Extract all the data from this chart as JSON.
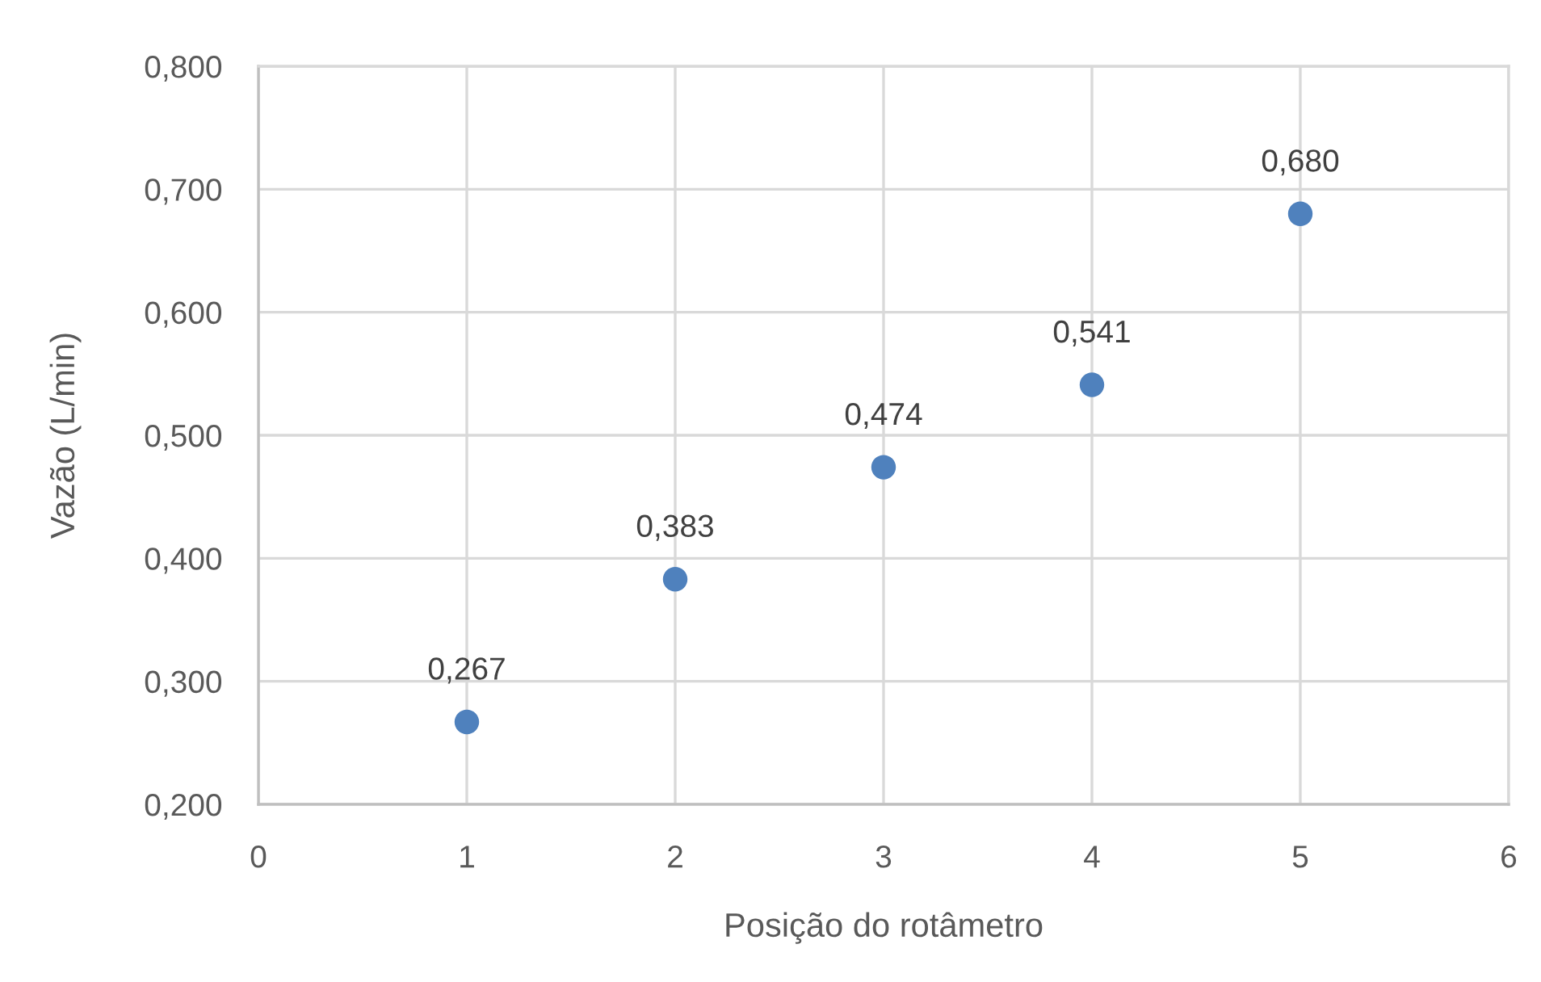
{
  "chart_data": {
    "type": "scatter",
    "xlabel": "Posição do rotâmetro",
    "ylabel": "Vazão (L/min)",
    "x": [
      1,
      2,
      3,
      4,
      5
    ],
    "series": [
      {
        "color": "#4f81bd",
        "values": [
          0.267,
          0.383,
          0.474,
          0.541,
          0.68
        ],
        "value_labels": [
          "0,267",
          "0,383",
          "0,474",
          "0,541",
          "0,680"
        ]
      }
    ],
    "xlim": [
      0,
      6
    ],
    "xticks": [
      0,
      1,
      2,
      3,
      4,
      5,
      6
    ],
    "ylim": [
      0.2,
      0.8
    ],
    "yticks": [
      {
        "value": 0.2,
        "label": "0,200"
      },
      {
        "value": 0.3,
        "label": "0,300"
      },
      {
        "value": 0.4,
        "label": "0,400"
      },
      {
        "value": 0.5,
        "label": "0,500"
      },
      {
        "value": 0.6,
        "label": "0,600"
      },
      {
        "value": 0.7,
        "label": "0,700"
      },
      {
        "value": 0.8,
        "label": "0,800"
      }
    ],
    "grid": true,
    "marker": "circle"
  }
}
